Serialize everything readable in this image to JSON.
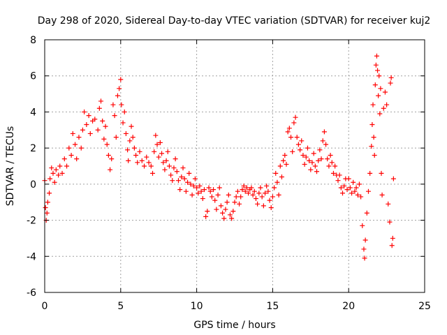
{
  "chart_data": {
    "type": "scatter",
    "title": "Day 298 of 2020, Sidereal Day-to-day VTEC variation (SDTVAR) for receiver kuj2",
    "xlabel": "GPS time / hours",
    "ylabel": "SDTVAR / TECUs",
    "xlim": [
      0,
      25
    ],
    "ylim": [
      -6,
      8
    ],
    "xticks": [
      0,
      5,
      10,
      15,
      20,
      25
    ],
    "yticks": [
      -6,
      -4,
      -2,
      0,
      2,
      4,
      6,
      8
    ],
    "xtick_labels": [
      "0",
      "5",
      "10",
      "15",
      "20",
      "25"
    ],
    "ytick_labels": [
      "-6",
      "-4",
      "-2",
      "0",
      "2",
      "4",
      "6",
      "8"
    ],
    "grid": true,
    "marker": "plus",
    "series": [
      {
        "name": "SDTVAR",
        "color": "#ff0000",
        "points": [
          [
            0.0,
            0.2
          ],
          [
            0.05,
            -1.3
          ],
          [
            0.1,
            -2.0
          ],
          [
            0.15,
            -1.6
          ],
          [
            0.2,
            -1.0
          ],
          [
            0.3,
            -0.5
          ],
          [
            0.35,
            0.3
          ],
          [
            0.45,
            0.9
          ],
          [
            0.55,
            0.6
          ],
          [
            0.65,
            0.1
          ],
          [
            0.75,
            0.8
          ],
          [
            0.9,
            0.5
          ],
          [
            1.0,
            1.0
          ],
          [
            1.15,
            0.6
          ],
          [
            1.3,
            1.4
          ],
          [
            1.45,
            1.0
          ],
          [
            1.6,
            2.0
          ],
          [
            1.75,
            1.6
          ],
          [
            1.85,
            2.8
          ],
          [
            2.0,
            2.2
          ],
          [
            2.1,
            1.4
          ],
          [
            2.25,
            2.6
          ],
          [
            2.4,
            2.0
          ],
          [
            2.5,
            3.0
          ],
          [
            2.6,
            4.0
          ],
          [
            2.75,
            3.3
          ],
          [
            2.9,
            3.8
          ],
          [
            3.0,
            2.8
          ],
          [
            3.15,
            3.5
          ],
          [
            3.3,
            3.6
          ],
          [
            3.5,
            3.0
          ],
          [
            3.6,
            4.2
          ],
          [
            3.7,
            4.6
          ],
          [
            3.8,
            3.5
          ],
          [
            3.9,
            2.5
          ],
          [
            4.0,
            3.2
          ],
          [
            4.1,
            2.2
          ],
          [
            4.2,
            1.6
          ],
          [
            4.3,
            0.8
          ],
          [
            4.4,
            1.4
          ],
          [
            4.5,
            4.4
          ],
          [
            4.6,
            3.8
          ],
          [
            4.7,
            2.6
          ],
          [
            4.8,
            4.9
          ],
          [
            4.9,
            5.3
          ],
          [
            5.0,
            5.8
          ],
          [
            5.05,
            4.4
          ],
          [
            5.15,
            3.4
          ],
          [
            5.25,
            4.0
          ],
          [
            5.35,
            2.8
          ],
          [
            5.45,
            1.9
          ],
          [
            5.5,
            1.3
          ],
          [
            5.6,
            2.4
          ],
          [
            5.7,
            3.2
          ],
          [
            5.8,
            2.6
          ],
          [
            5.9,
            2.0
          ],
          [
            6.0,
            1.6
          ],
          [
            6.1,
            1.2
          ],
          [
            6.25,
            1.8
          ],
          [
            6.4,
            1.3
          ],
          [
            6.55,
            1.0
          ],
          [
            6.7,
            1.5
          ],
          [
            6.85,
            1.2
          ],
          [
            7.0,
            1.0
          ],
          [
            7.1,
            0.6
          ],
          [
            7.2,
            1.8
          ],
          [
            7.3,
            2.7
          ],
          [
            7.4,
            2.2
          ],
          [
            7.5,
            1.5
          ],
          [
            7.6,
            2.3
          ],
          [
            7.7,
            1.7
          ],
          [
            7.8,
            1.2
          ],
          [
            7.9,
            0.8
          ],
          [
            8.0,
            1.3
          ],
          [
            8.1,
            1.8
          ],
          [
            8.2,
            1.0
          ],
          [
            8.3,
            0.5
          ],
          [
            8.4,
            0.2
          ],
          [
            8.5,
            0.9
          ],
          [
            8.6,
            1.4
          ],
          [
            8.7,
            0.7
          ],
          [
            8.8,
            0.2
          ],
          [
            8.9,
            -0.3
          ],
          [
            9.0,
            0.4
          ],
          [
            9.1,
            0.9
          ],
          [
            9.2,
            0.3
          ],
          [
            9.3,
            -0.4
          ],
          [
            9.4,
            0.1
          ],
          [
            9.5,
            0.6
          ],
          [
            9.6,
            0.0
          ],
          [
            9.7,
            -0.6
          ],
          [
            9.8,
            -0.1
          ],
          [
            9.9,
            0.3
          ],
          [
            10.0,
            -0.2
          ],
          [
            10.1,
            -0.5
          ],
          [
            10.2,
            -0.1
          ],
          [
            10.3,
            -0.4
          ],
          [
            10.4,
            -0.8
          ],
          [
            10.5,
            -0.3
          ],
          [
            10.6,
            -1.8
          ],
          [
            10.7,
            -1.5
          ],
          [
            10.8,
            -0.2
          ],
          [
            10.9,
            -0.4
          ],
          [
            11.0,
            -0.7
          ],
          [
            11.1,
            -0.3
          ],
          [
            11.2,
            -0.9
          ],
          [
            11.3,
            -1.4
          ],
          [
            11.4,
            -0.6
          ],
          [
            11.5,
            -0.2
          ],
          [
            11.6,
            -1.2
          ],
          [
            11.7,
            -1.6
          ],
          [
            11.8,
            -1.9
          ],
          [
            11.9,
            -1.4
          ],
          [
            12.0,
            -1.0
          ],
          [
            12.1,
            -0.6
          ],
          [
            12.2,
            -1.7
          ],
          [
            12.3,
            -1.9
          ],
          [
            12.4,
            -1.5
          ],
          [
            12.5,
            -1.0
          ],
          [
            12.6,
            -0.7
          ],
          [
            12.7,
            -0.4
          ],
          [
            12.8,
            -1.1
          ],
          [
            12.9,
            -0.7
          ],
          [
            13.0,
            -0.3
          ],
          [
            13.1,
            -0.1
          ],
          [
            13.2,
            -0.4
          ],
          [
            13.3,
            -0.2
          ],
          [
            13.4,
            -0.5
          ],
          [
            13.5,
            -0.3
          ],
          [
            13.6,
            -0.2
          ],
          [
            13.7,
            -0.6
          ],
          [
            13.8,
            -0.4
          ],
          [
            13.9,
            -0.8
          ],
          [
            14.0,
            -1.1
          ],
          [
            14.1,
            -0.5
          ],
          [
            14.2,
            -0.2
          ],
          [
            14.3,
            -0.7
          ],
          [
            14.4,
            -1.2
          ],
          [
            14.5,
            -0.5
          ],
          [
            14.6,
            -0.1
          ],
          [
            14.7,
            -0.4
          ],
          [
            14.8,
            -0.9
          ],
          [
            14.9,
            -1.3
          ],
          [
            15.0,
            -0.7
          ],
          [
            15.1,
            -0.2
          ],
          [
            15.2,
            0.6
          ],
          [
            15.3,
            0.1
          ],
          [
            15.4,
            -0.6
          ],
          [
            15.5,
            1.0
          ],
          [
            15.6,
            0.4
          ],
          [
            15.7,
            1.3
          ],
          [
            15.8,
            1.6
          ],
          [
            15.9,
            1.1
          ],
          [
            16.0,
            2.9
          ],
          [
            16.1,
            3.1
          ],
          [
            16.2,
            2.6
          ],
          [
            16.3,
            1.8
          ],
          [
            16.4,
            3.4
          ],
          [
            16.5,
            3.7
          ],
          [
            16.6,
            2.6
          ],
          [
            16.7,
            2.2
          ],
          [
            16.8,
            1.9
          ],
          [
            16.9,
            2.4
          ],
          [
            17.0,
            1.6
          ],
          [
            17.1,
            1.1
          ],
          [
            17.2,
            1.5
          ],
          [
            17.3,
            2.0
          ],
          [
            17.4,
            1.3
          ],
          [
            17.5,
            0.8
          ],
          [
            17.6,
            1.2
          ],
          [
            17.7,
            1.7
          ],
          [
            17.8,
            1.0
          ],
          [
            17.9,
            0.7
          ],
          [
            18.0,
            1.3
          ],
          [
            18.1,
            1.9
          ],
          [
            18.2,
            1.4
          ],
          [
            18.3,
            2.4
          ],
          [
            18.4,
            2.9
          ],
          [
            18.5,
            2.2
          ],
          [
            18.6,
            1.4
          ],
          [
            18.7,
            1.0
          ],
          [
            18.8,
            1.6
          ],
          [
            18.9,
            1.2
          ],
          [
            19.0,
            0.6
          ],
          [
            19.1,
            1.0
          ],
          [
            19.2,
            0.5
          ],
          [
            19.3,
            0.2
          ],
          [
            19.4,
            0.5
          ],
          [
            19.5,
            -0.2
          ],
          [
            19.6,
            -0.5
          ],
          [
            19.7,
            -0.1
          ],
          [
            19.8,
            0.3
          ],
          [
            19.9,
            -0.3
          ],
          [
            20.0,
            0.3
          ],
          [
            20.1,
            -0.2
          ],
          [
            20.2,
            -0.5
          ],
          [
            20.3,
            0.1
          ],
          [
            20.4,
            -0.4
          ],
          [
            20.5,
            -0.2
          ],
          [
            20.6,
            -0.6
          ],
          [
            20.7,
            0.0
          ],
          [
            20.8,
            -0.7
          ],
          [
            20.9,
            -2.3
          ],
          [
            21.0,
            -3.6
          ],
          [
            21.05,
            -4.1
          ],
          [
            21.1,
            -3.1
          ],
          [
            21.2,
            -1.6
          ],
          [
            21.3,
            -0.4
          ],
          [
            21.4,
            0.6
          ],
          [
            21.5,
            2.1
          ],
          [
            21.55,
            3.3
          ],
          [
            21.6,
            4.4
          ],
          [
            21.65,
            2.6
          ],
          [
            21.7,
            1.6
          ],
          [
            21.75,
            5.5
          ],
          [
            21.8,
            6.6
          ],
          [
            21.85,
            7.1
          ],
          [
            21.9,
            6.3
          ],
          [
            21.95,
            4.9
          ],
          [
            22.0,
            6.0
          ],
          [
            22.05,
            3.9
          ],
          [
            22.1,
            5.3
          ],
          [
            22.15,
            0.6
          ],
          [
            22.2,
            -0.6
          ],
          [
            22.3,
            4.2
          ],
          [
            22.4,
            5.1
          ],
          [
            22.5,
            4.4
          ],
          [
            22.6,
            -1.1
          ],
          [
            22.7,
            -2.1
          ],
          [
            22.75,
            5.6
          ],
          [
            22.8,
            5.9
          ],
          [
            22.85,
            -3.4
          ],
          [
            22.9,
            -3.0
          ],
          [
            22.95,
            0.3
          ]
        ]
      }
    ]
  }
}
